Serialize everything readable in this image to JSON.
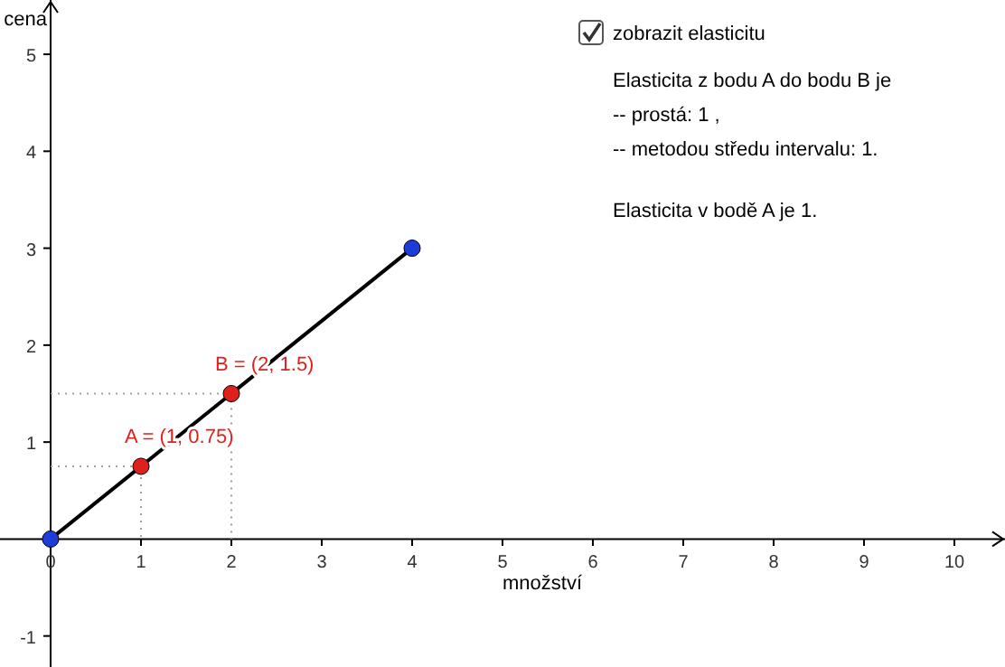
{
  "chart_data": {
    "type": "line",
    "xlabel": "množství",
    "ylabel": "cena",
    "xlim": [
      -0.56,
      10.56
    ],
    "ylim": [
      -1.32,
      5.56
    ],
    "xticks": [
      0,
      1,
      2,
      3,
      4,
      5,
      6,
      7,
      8,
      9,
      10
    ],
    "yticks": [
      -1,
      1,
      2,
      3,
      4,
      5
    ],
    "grid": false,
    "legend": false,
    "series": [
      {
        "type": "line",
        "color": "#a0a0a0",
        "line_style": "dotted",
        "marker": "none",
        "x": [
          0,
          1,
          1
        ],
        "values": [
          0.75,
          0.75,
          0
        ]
      },
      {
        "type": "line",
        "color": "#a0a0a0",
        "line_style": "dotted",
        "marker": "none",
        "x": [
          0,
          2,
          2
        ],
        "values": [
          1.5,
          1.5,
          0
        ]
      },
      {
        "type": "line",
        "color": "#000000",
        "line_style": "solid",
        "marker": "none",
        "x": [
          0,
          4
        ],
        "values": [
          0,
          3
        ]
      },
      {
        "type": "scatter",
        "color": "#1e3cd8",
        "marker": "circle",
        "x": [
          0,
          4
        ],
        "values": [
          0,
          3
        ]
      },
      {
        "type": "scatter",
        "color": "#e0201c",
        "marker": "circle",
        "x": [
          1,
          2
        ],
        "values": [
          0.75,
          1.5
        ]
      }
    ],
    "annotations": [
      {
        "text": "A = (1, 0.75)",
        "x": 1,
        "y": 0.75
      },
      {
        "text": "B = (2, 1.5)",
        "x": 2,
        "y": 1.5
      },
      "zobrazit elasticitu",
      "Elasticita z bodu A do bodu B je",
      "-- prostá: 1 ,",
      "-- metodou středu intervalu: 1.",
      "Elasticita v bodě A je 1."
    ]
  }
}
